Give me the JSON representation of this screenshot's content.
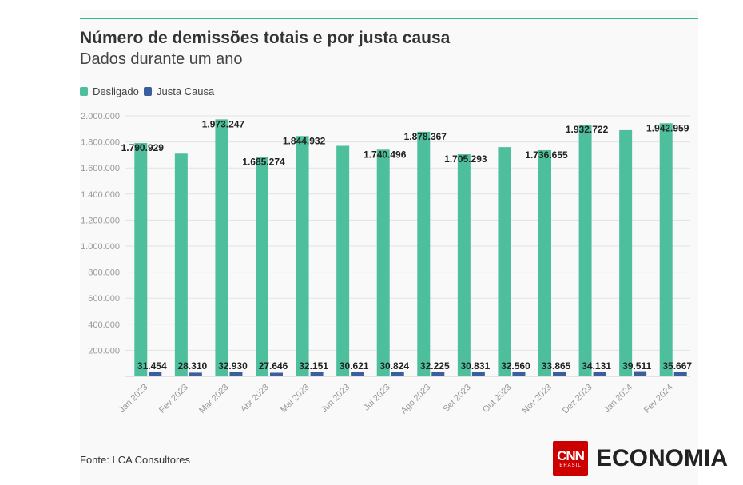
{
  "header": {
    "title": "Número de demissões totais e por justa causa",
    "subtitle": "Dados durante um ano"
  },
  "legend": [
    {
      "label": "Desligado",
      "color": "#4dbf9d"
    },
    {
      "label": "Justa Causa",
      "color": "#3b5f9c"
    }
  ],
  "footer": {
    "source": "Fonte: LCA Consultores",
    "logo_brand": "CNN",
    "logo_sub": "BRASIL",
    "logo_text": "ECONOMIA"
  },
  "chart_data": {
    "type": "bar",
    "title": "Número de demissões totais e por justa causa",
    "subtitle": "Dados durante um ano",
    "xlabel": "",
    "ylabel": "",
    "ylim": [
      0,
      2000000
    ],
    "yticks": [
      200000,
      400000,
      600000,
      800000,
      1000000,
      1200000,
      1400000,
      1600000,
      1800000,
      2000000
    ],
    "ytick_labels": [
      "200.000",
      "400.000",
      "600.000",
      "800.000",
      "1.000.000",
      "1.200.000",
      "1.400.000",
      "1.600.000",
      "1.800.000",
      "2.000.000"
    ],
    "grid": true,
    "legend_position": "top-left",
    "categories": [
      "Jan 2023",
      "Fev 2023",
      "Mar 2023",
      "Abr 2023",
      "Mai 2023",
      "Jun 2023",
      "Jul 2023",
      "Ago 2023",
      "Set 2023",
      "Out 2023",
      "Nov 2023",
      "Dez 2023",
      "Jan 2024",
      "Fev 2024"
    ],
    "series": [
      {
        "name": "Desligado",
        "color": "#4dbf9d",
        "values": [
          1790929,
          1710000,
          1973247,
          1685274,
          1844932,
          1770000,
          1740496,
          1878367,
          1705293,
          1760000,
          1736655,
          1932722,
          1890000,
          1942959
        ],
        "labels": [
          "1.790.929",
          "",
          "1.973.247",
          "1.685.274",
          "1.844.932",
          "",
          "1.740.496",
          "1.878.367",
          "1.705.293",
          "",
          "1.736.655",
          "1.932.722",
          "",
          "1.942.959"
        ]
      },
      {
        "name": "Justa Causa",
        "color": "#3b5f9c",
        "values": [
          31454,
          28310,
          32930,
          27646,
          32151,
          30621,
          30824,
          32225,
          30831,
          32560,
          33865,
          34131,
          39511,
          35667
        ],
        "labels": [
          "31.454",
          "28.310",
          "32.930",
          "27.646",
          "32.151",
          "30.621",
          "30.824",
          "32.225",
          "30.831",
          "32.560",
          "33.865",
          "34.131",
          "39.511",
          "35.667"
        ]
      }
    ]
  }
}
